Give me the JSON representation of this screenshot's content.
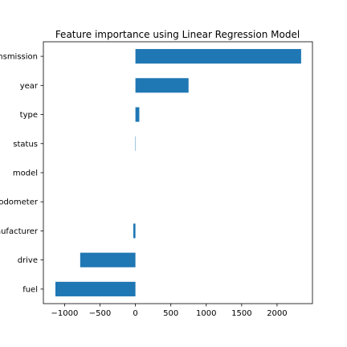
{
  "chart_data": {
    "type": "bar",
    "orientation": "horizontal",
    "title": "Feature importance using Linear Regression Model",
    "xlabel": "",
    "ylabel": "",
    "categories": [
      "transmission",
      "year",
      "type",
      "status",
      "model",
      "odometer",
      "manufacturer",
      "drive",
      "fuel"
    ],
    "values": [
      2340,
      750,
      55,
      5,
      0,
      0,
      -30,
      -780,
      -1130
    ],
    "xlim": [
      -1300,
      2500
    ],
    "xticks": [
      -1000,
      -500,
      0,
      500,
      1000,
      1500,
      2000
    ],
    "xtick_labels": [
      "−1000",
      "−500",
      "0",
      "500",
      "1000",
      "1500",
      "2000"
    ],
    "grid": false,
    "legend": "none",
    "bar_color": "#1f77b4"
  }
}
